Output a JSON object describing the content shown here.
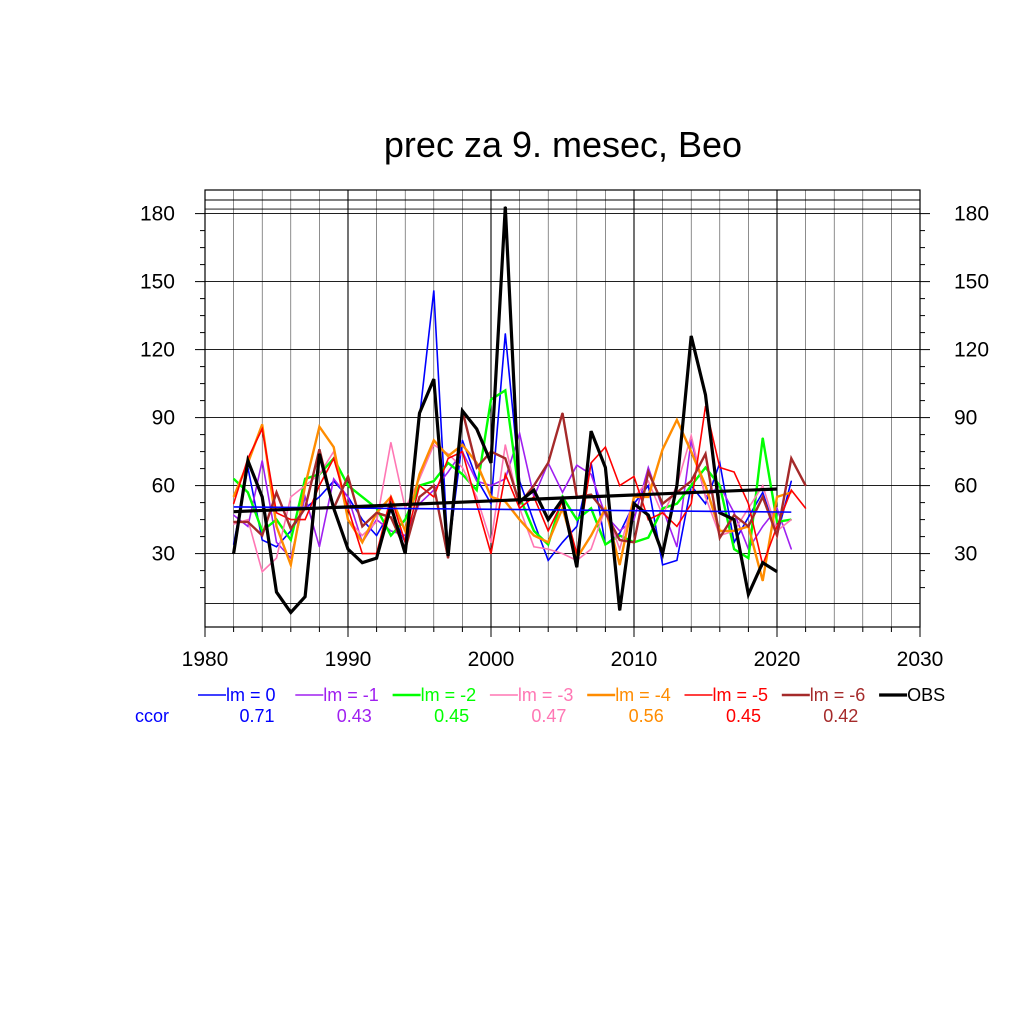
{
  "chart_data": {
    "type": "line",
    "title": "prec za 9. mesec, Beo",
    "xlim": [
      1980,
      2030
    ],
    "ylim": [
      4,
      190
    ],
    "x_ticks": [
      1980,
      1990,
      2000,
      2010,
      2020,
      2030
    ],
    "y_ticks": [
      30,
      60,
      90,
      120,
      150,
      180
    ],
    "grid": true,
    "ccor_label": "ccor",
    "series": [
      {
        "name": "lm = 0",
        "color": "#0000ff",
        "width": 1.6,
        "ccor": "0.71",
        "x": [
          1982,
          1983,
          1984,
          1985,
          1986,
          1987,
          1988,
          1989,
          1990,
          1991,
          1992,
          1993,
          1994,
          1995,
          1996,
          1997,
          1998,
          1999,
          2000,
          2001,
          2002,
          2003,
          2004,
          2005,
          2006,
          2007,
          2008,
          2009,
          2010,
          2011,
          2012,
          2013,
          2014,
          2015,
          2016,
          2017,
          2018,
          2019,
          2020,
          2021
        ],
        "y": [
          34,
          68,
          36,
          33,
          40,
          50,
          55,
          62,
          55,
          45,
          38,
          49,
          35,
          90,
          146,
          30,
          80,
          63,
          52,
          127,
          62,
          44,
          27,
          35,
          42,
          70,
          34,
          39,
          52,
          60,
          25,
          27,
          60,
          52,
          70,
          35,
          46,
          57,
          38,
          62
        ]
      },
      {
        "name": "lm = -1",
        "color": "#a020f0",
        "width": 1.6,
        "ccor": "0.43",
        "x": [
          1982,
          1983,
          1984,
          1985,
          1986,
          1987,
          1988,
          1989,
          1990,
          1991,
          1992,
          1993,
          1994,
          1995,
          1996,
          1997,
          1998,
          1999,
          2000,
          2001,
          2002,
          2003,
          2004,
          2005,
          2006,
          2007,
          2008,
          2009,
          2010,
          2011,
          2012,
          2013,
          2014,
          2015,
          2016,
          2017,
          2018,
          2019,
          2020,
          2021
        ],
        "y": [
          47,
          42,
          71,
          35,
          28,
          55,
          33,
          63,
          55,
          35,
          45,
          40,
          38,
          52,
          58,
          66,
          75,
          62,
          60,
          63,
          83,
          55,
          70,
          57,
          69,
          65,
          47,
          40,
          45,
          68,
          50,
          33,
          80,
          55,
          60,
          48,
          32,
          42,
          50,
          32
        ]
      },
      {
        "name": "lm = -2",
        "color": "#00ff00",
        "width": 2.4,
        "ccor": "0.45",
        "x": [
          1982,
          1983,
          1984,
          1985,
          1986,
          1987,
          1988,
          1989,
          1990,
          1991,
          1992,
          1993,
          1994,
          1995,
          1996,
          1997,
          1998,
          1999,
          2000,
          2001,
          2002,
          2003,
          2004,
          2005,
          2006,
          2007,
          2008,
          2009,
          2010,
          2011,
          2012,
          2013,
          2014,
          2015,
          2016,
          2017,
          2018,
          2019,
          2020,
          2021
        ],
        "y": [
          63,
          57,
          40,
          45,
          36,
          63,
          65,
          72,
          60,
          55,
          50,
          38,
          45,
          60,
          62,
          70,
          65,
          58,
          98,
          102,
          55,
          40,
          34,
          55,
          45,
          50,
          34,
          38,
          35,
          37,
          50,
          52,
          60,
          68,
          60,
          32,
          28,
          81,
          44,
          45
        ]
      },
      {
        "name": "lm = -3",
        "color": "#ff77b4",
        "width": 1.6,
        "ccor": "0.47",
        "x": [
          1982,
          1983,
          1984,
          1985,
          1986,
          1987,
          1988,
          1989,
          1990,
          1991,
          1992,
          1993,
          1994,
          1995,
          1996,
          1997,
          1998,
          1999,
          2000,
          2001,
          2002,
          2003,
          2004,
          2005,
          2006,
          2007,
          2008,
          2009,
          2010,
          2011,
          2012,
          2013,
          2014,
          2015,
          2016,
          2017,
          2018,
          2019,
          2020,
          2021
        ],
        "y": [
          43,
          45,
          22,
          28,
          55,
          60,
          65,
          75,
          45,
          38,
          44,
          79,
          50,
          63,
          78,
          74,
          68,
          55,
          35,
          78,
          50,
          33,
          32,
          30,
          27,
          32,
          50,
          32,
          55,
          62,
          47,
          60,
          82,
          55,
          38,
          40,
          50,
          60,
          40,
          45
        ]
      },
      {
        "name": "lm = -4",
        "color": "#ff8c00",
        "width": 2.4,
        "ccor": "0.56",
        "x": [
          1982,
          1983,
          1984,
          1985,
          1986,
          1987,
          1988,
          1989,
          1990,
          1991,
          1992,
          1993,
          1994,
          1995,
          1996,
          1997,
          1998,
          1999,
          2000,
          2001,
          2002,
          2003,
          2004,
          2005,
          2006,
          2007,
          2008,
          2009,
          2010,
          2011,
          2012,
          2013,
          2014,
          2015,
          2016,
          2017,
          2018,
          2019,
          2020,
          2021
        ],
        "y": [
          55,
          70,
          87,
          42,
          25,
          60,
          86,
          77,
          45,
          35,
          48,
          55,
          40,
          65,
          80,
          73,
          78,
          70,
          55,
          53,
          45,
          38,
          35,
          50,
          28,
          38,
          50,
          25,
          55,
          55,
          76,
          89,
          75,
          60,
          40,
          40,
          42,
          18,
          55,
          57
        ]
      },
      {
        "name": "lm = -5",
        "color": "#ff0000",
        "width": 1.6,
        "ccor": "0.45",
        "x": [
          1982,
          1983,
          1984,
          1985,
          1986,
          1987,
          1988,
          1989,
          1990,
          1991,
          1992,
          1993,
          1994,
          1995,
          1996,
          1997,
          1998,
          1999,
          2000,
          2001,
          2002,
          2003,
          2004,
          2005,
          2006,
          2007,
          2008,
          2009,
          2010,
          2011,
          2012,
          2013,
          2014,
          2015,
          2016,
          2017,
          2018,
          2019,
          2020,
          2021,
          2022
        ],
        "y": [
          52,
          72,
          85,
          48,
          45,
          45,
          60,
          72,
          50,
          30,
          30,
          55,
          35,
          60,
          55,
          72,
          75,
          52,
          30,
          65,
          50,
          55,
          40,
          53,
          30,
          70,
          77,
          60,
          64,
          45,
          48,
          42,
          52,
          95,
          68,
          66,
          52,
          25,
          42,
          58,
          50
        ]
      },
      {
        "name": "lm = -6",
        "color": "#a52a2a",
        "width": 2.4,
        "ccor": "0.42",
        "x": [
          1982,
          1983,
          1984,
          1985,
          1986,
          1987,
          1988,
          1989,
          1990,
          1991,
          1992,
          1993,
          1994,
          1995,
          1996,
          1997,
          1998,
          1999,
          2000,
          2001,
          2002,
          2003,
          2004,
          2005,
          2006,
          2007,
          2008,
          2009,
          2010,
          2011,
          2012,
          2013,
          2014,
          2015,
          2016,
          2017,
          2018,
          2019,
          2020,
          2021,
          2022
        ],
        "y": [
          44,
          44,
          38,
          57,
          41,
          50,
          76,
          50,
          64,
          42,
          48,
          46,
          32,
          55,
          60,
          28,
          93,
          68,
          75,
          72,
          52,
          60,
          70,
          92,
          55,
          56,
          48,
          36,
          35,
          66,
          52,
          57,
          62,
          74,
          37,
          47,
          42,
          55,
          38,
          72,
          60
        ]
      },
      {
        "name": "OBS",
        "color": "#000000",
        "width": 3.2,
        "ccor": "",
        "x": [
          1982,
          1983,
          1984,
          1985,
          1986,
          1987,
          1988,
          1989,
          1990,
          1991,
          1992,
          1993,
          1994,
          1995,
          1996,
          1997,
          1998,
          1999,
          2000,
          2001,
          2002,
          2003,
          2004,
          2005,
          2006,
          2007,
          2008,
          2009,
          2010,
          2011,
          2012,
          2013,
          2014,
          2015,
          2016,
          2017,
          2018,
          2019,
          2020
        ],
        "y": [
          30,
          71,
          55,
          13,
          4,
          11,
          74,
          50,
          32,
          26,
          28,
          51,
          30,
          92,
          107,
          29,
          93,
          85,
          70,
          183,
          53,
          58,
          45,
          54,
          24,
          84,
          68,
          5,
          52,
          47,
          30,
          60,
          126,
          100,
          48,
          45,
          12,
          26,
          22
        ]
      }
    ],
    "trend_lines": [
      {
        "color": "#0000ff",
        "width": 1.6,
        "x": [
          1982,
          2021
        ],
        "y": [
          50.6,
          48.3
        ]
      },
      {
        "color": "#000000",
        "width": 3.2,
        "x": [
          1982,
          2020
        ],
        "y": [
          48.5,
          58.5
        ]
      }
    ]
  }
}
